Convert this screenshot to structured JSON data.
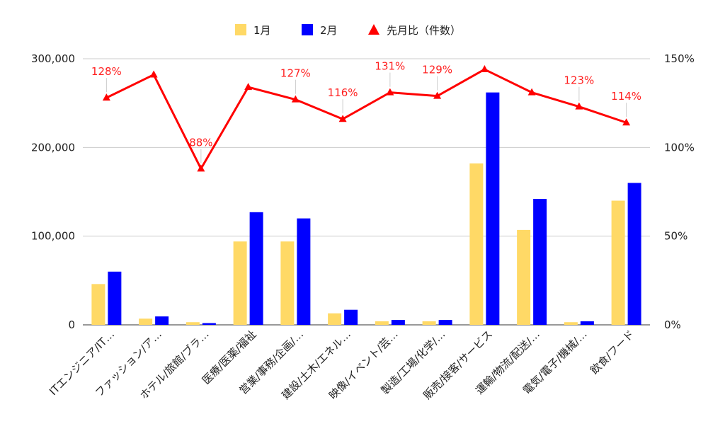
{
  "chart_data": {
    "type": "bar",
    "categories": [
      "ITエンジニア/IT…",
      "ファッション/ア…",
      "ホテル/旅館/ブラ…",
      "医療/医薬/福祉",
      "営業/事務/企画/…",
      "建設/土木/エネル…",
      "映像/イベント/芸…",
      "製造/工場/化学/…",
      "販売/接客/サービス",
      "運輸/物流/配送/…",
      "電気/電子/機械/…",
      "飲食/フード"
    ],
    "series": [
      {
        "name": "1月",
        "type": "bar",
        "axis": "left",
        "color": "#ffd966",
        "values": [
          46000,
          7000,
          3000,
          94000,
          94000,
          13000,
          4000,
          4000,
          182000,
          107000,
          3000,
          140000
        ]
      },
      {
        "name": "2月",
        "type": "bar",
        "axis": "left",
        "color": "#0000ff",
        "values": [
          60000,
          9500,
          2000,
          127000,
          120000,
          17000,
          5500,
          5500,
          262000,
          142000,
          4000,
          160000
        ]
      },
      {
        "name": "先月比（件数）",
        "type": "line",
        "axis": "right",
        "color": "#ff0000",
        "values": [
          128,
          141,
          88,
          134,
          127,
          116,
          131,
          129,
          144,
          131,
          123,
          114
        ],
        "data_labels": [
          "128%",
          "",
          "88%",
          "",
          "127%",
          "116%",
          "131%",
          "129%",
          "",
          "",
          "123%",
          "114%"
        ]
      }
    ],
    "left_axis": {
      "min": 0,
      "max": 300000,
      "ticks": [
        0,
        100000,
        200000,
        300000
      ],
      "tick_labels": [
        "0",
        "100,000",
        "200,000",
        "300,000"
      ]
    },
    "right_axis": {
      "min": 0,
      "max": 150,
      "ticks": [
        0,
        50,
        100,
        150
      ],
      "tick_labels": [
        "0%",
        "50%",
        "100%",
        "150%"
      ]
    },
    "grid": true,
    "legend_position": "top"
  }
}
